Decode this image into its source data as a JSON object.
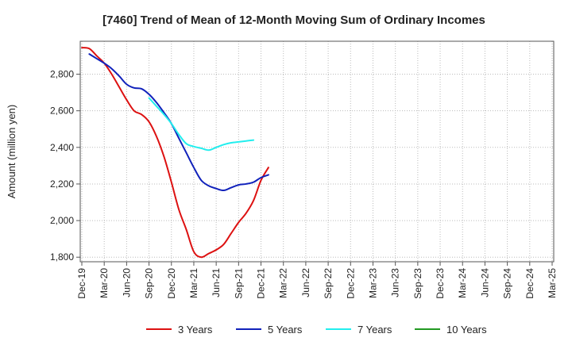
{
  "chart_data": {
    "type": "line",
    "title": "[7460]  Trend of Mean of 12-Month Moving Sum of Ordinary Incomes",
    "xlabel": "",
    "ylabel": "Amount (million yen)",
    "ylim": [
      1775,
      2980
    ],
    "yticks": [
      1800,
      2000,
      2200,
      2400,
      2600,
      2800
    ],
    "ytick_labels": [
      "1,800",
      "2,000",
      "2,200",
      "2,400",
      "2,600",
      "2,800"
    ],
    "x_tick_labels": [
      "Dec-19",
      "Mar-20",
      "Jun-20",
      "Sep-20",
      "Dec-20",
      "Mar-21",
      "Jun-21",
      "Sep-21",
      "Dec-21",
      "Mar-22",
      "Jun-22",
      "Sep-22",
      "Dec-22",
      "Mar-23",
      "Jun-23",
      "Sep-23",
      "Dec-23",
      "Mar-24",
      "Jun-24",
      "Sep-24",
      "Dec-24",
      "Mar-25"
    ],
    "grid": true,
    "legend_position": "bottom",
    "series": [
      {
        "name": "3 Years",
        "color": "#dd1111",
        "start_index": 0,
        "values": [
          2945,
          2940,
          2900,
          2860,
          2800,
          2730,
          2660,
          2600,
          2580,
          2540,
          2460,
          2350,
          2210,
          2060,
          1950,
          1830,
          1800,
          1820,
          1840,
          1870,
          1930,
          1990,
          2040,
          2110,
          2220,
          2290
        ]
      },
      {
        "name": "5 Years",
        "color": "#1122bb",
        "start_index": 1,
        "values": [
          2910,
          2885,
          2860,
          2830,
          2790,
          2745,
          2725,
          2720,
          2690,
          2645,
          2590,
          2530,
          2450,
          2370,
          2290,
          2220,
          2190,
          2175,
          2165,
          2180,
          2195,
          2200,
          2210,
          2235,
          2250
        ]
      },
      {
        "name": "7 Years",
        "color": "#22eeee",
        "start_index": 9,
        "values": [
          2670,
          2625,
          2580,
          2530,
          2470,
          2420,
          2405,
          2395,
          2385,
          2400,
          2415,
          2425,
          2430,
          2435,
          2440
        ]
      },
      {
        "name": "10 Years",
        "color": "#229922",
        "start_index": 0,
        "values": []
      }
    ]
  }
}
